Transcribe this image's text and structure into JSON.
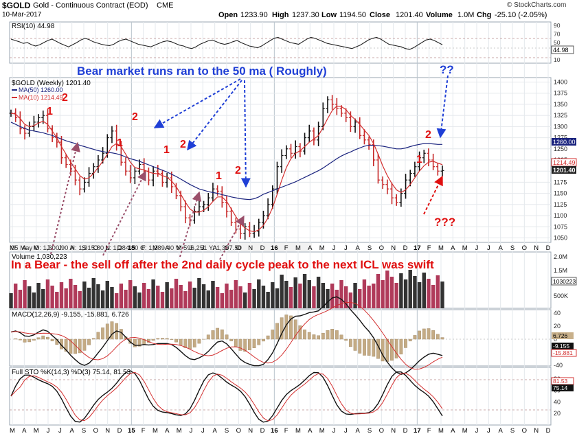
{
  "header": {
    "symbol": "$GOLD",
    "name": "Gold - Continuous Contract (EOD)",
    "exchange": "CME",
    "date": "10-Mar-2017",
    "open_label": "Open",
    "open": "1233.90",
    "high_label": "High",
    "high": "1237.30",
    "low_label": "Low",
    "low": "1194.50",
    "close_label": "Close",
    "close": "1201.40",
    "volume_label": "Volume",
    "volume": "1.0M",
    "chg_label": "Chg",
    "chg": "-25.10 (-2.05%)",
    "watermark": "© StockCharts.com"
  },
  "rsi_panel": {
    "label": "RSI(10) 44.98",
    "ticks": [
      "90",
      "70",
      "50",
      "30",
      "10"
    ],
    "last_value_badge": "44.98",
    "values": [
      58,
      55,
      52,
      48,
      50,
      45,
      42,
      45,
      50,
      55,
      58,
      53,
      48,
      44,
      40,
      45,
      50,
      56,
      60,
      57,
      52,
      49,
      46,
      44,
      43,
      46,
      52,
      56,
      58,
      54,
      50,
      46,
      44,
      42,
      40,
      44,
      48,
      52,
      54,
      52,
      48,
      44,
      42,
      38,
      36,
      40,
      46,
      50,
      54,
      56,
      52,
      48,
      46,
      48,
      52,
      55,
      50,
      46,
      42,
      40,
      38,
      42,
      48,
      54,
      60,
      62,
      58,
      54,
      50,
      48,
      46,
      52,
      58,
      62,
      60,
      56,
      52,
      48,
      46,
      44,
      42,
      40,
      38,
      36,
      40,
      44,
      50,
      56,
      60,
      62,
      58,
      52,
      46,
      44,
      42,
      40,
      36,
      34,
      38,
      44,
      50,
      56,
      58,
      55,
      50,
      45
    ]
  },
  "price_panel": {
    "legend_title": "$GOLD (Weekly) 1201.40",
    "ma50_label": "MA(50) 1260.00",
    "ma10_label": "MA(10) 1214.49",
    "y_ticks": [
      "1400",
      "1375",
      "1350",
      "1325",
      "1300",
      "1275",
      "1250",
      "1225",
      "1200",
      "1175",
      "1150",
      "1125",
      "1100",
      "1075",
      "1050"
    ],
    "price_badge": "1201.40",
    "ma50_badge": "1260.00",
    "ma10_badge": "1214.49",
    "ohlc_strip": "05 May O: 1,300.90   H: 1,315.80   L: 1,284.80   C: 1,289.40   V: 596,251   Y: 1,397.50"
  },
  "x_axis": {
    "labels": [
      "M",
      "A",
      "M",
      "J",
      "J",
      "A",
      "S",
      "O",
      "N",
      "D",
      "15",
      "F",
      "M",
      "A",
      "M",
      "J",
      "J",
      "A",
      "S",
      "O",
      "N",
      "D",
      "16",
      "F",
      "M",
      "A",
      "M",
      "J",
      "J",
      "A",
      "S",
      "O",
      "N",
      "D",
      "17",
      "F",
      "M",
      "A",
      "M",
      "J",
      "J",
      "A",
      "S",
      "O",
      "N",
      "D"
    ]
  },
  "annotations": {
    "title": "Bear market runs ran to the 50 ma ( Roughly)",
    "bottom_note": "In a Bear - the sell off after the 2nd daily cycle peak to the   next ICL was swift",
    "question_top": "??",
    "question_bottom": "???",
    "cycle_marks": [
      "1",
      "2",
      "1",
      "2",
      "1",
      "2",
      "1",
      "2",
      "2",
      "1"
    ]
  },
  "volume_panel": {
    "label": "Volume 1,030,223",
    "ticks": [
      "2.0M",
      "1.5M",
      "500K"
    ],
    "badge": "1030223"
  },
  "macd_panel": {
    "label": "MACD(12,26,9) -9.155, -15.881, 6.726",
    "ticks": [
      "40",
      "20",
      "0",
      "-20",
      "-40"
    ],
    "badges": [
      "6.726",
      "-9.155",
      "-15.881"
    ]
  },
  "sto_panel": {
    "label": "Full STO %K(14,3) %D(3) 75.14, 81.53",
    "ticks": [
      "80",
      "60",
      "40",
      "20"
    ],
    "badges": [
      "81.53",
      "75.14"
    ]
  },
  "chart_data": {
    "type": "line",
    "title": "$GOLD (Weekly)",
    "frequency": "weekly",
    "x_range": [
      "2014-03",
      "2017-12"
    ],
    "ylim": [
      1040,
      1410
    ],
    "close": [
      1330,
      1320,
      1295,
      1285,
      1300,
      1310,
      1320,
      1325,
      1295,
      1275,
      1265,
      1230,
      1215,
      1200,
      1180,
      1160,
      1175,
      1195,
      1210,
      1225,
      1240,
      1275,
      1290,
      1260,
      1220,
      1200,
      1185,
      1200,
      1215,
      1200,
      1180,
      1200,
      1195,
      1175,
      1185,
      1165,
      1145,
      1120,
      1095,
      1090,
      1110,
      1120,
      1125,
      1140,
      1160,
      1155,
      1130,
      1110,
      1085,
      1070,
      1060,
      1075,
      1060,
      1065,
      1085,
      1100,
      1125,
      1160,
      1210,
      1235,
      1250,
      1240,
      1255,
      1245,
      1275,
      1290,
      1270,
      1300,
      1340,
      1360,
      1350,
      1340,
      1330,
      1320,
      1300,
      1310,
      1280,
      1270,
      1260,
      1225,
      1180,
      1170,
      1160,
      1140,
      1130,
      1150,
      1180,
      1195,
      1210,
      1230,
      1240,
      1225,
      1210,
      1200,
      1201.4
    ],
    "series": [
      {
        "name": "MA(50)",
        "values": [
          1310,
          1305,
          1300,
          1296,
          1292,
          1290,
          1288,
          1286,
          1283,
          1280,
          1276,
          1272,
          1268,
          1265,
          1262,
          1258,
          1255,
          1252,
          1249,
          1246,
          1244,
          1242,
          1241,
          1239,
          1236,
          1232,
          1228,
          1225,
          1222,
          1218,
          1214,
          1210,
          1206,
          1202,
          1198,
          1193,
          1188,
          1182,
          1176,
          1170,
          1165,
          1160,
          1157,
          1154,
          1152,
          1150,
          1147,
          1145,
          1142,
          1140,
          1138,
          1137,
          1136,
          1138,
          1142,
          1148,
          1152,
          1156,
          1160,
          1164,
          1168,
          1172,
          1176,
          1181,
          1186,
          1191,
          1196,
          1201,
          1207,
          1214,
          1221,
          1228,
          1234,
          1239,
          1243,
          1248,
          1252,
          1256,
          1258,
          1258,
          1257,
          1256,
          1254,
          1252,
          1250,
          1250,
          1252,
          1255,
          1258,
          1260,
          1262,
          1262,
          1261,
          1260,
          1260
        ]
      },
      {
        "name": "MA(10)",
        "values": [
          1330,
          1328,
          1318,
          1305,
          1300,
          1302,
          1308,
          1312,
          1305,
          1290,
          1275,
          1255,
          1238,
          1220,
          1205,
          1190,
          1182,
          1185,
          1195,
          1208,
          1222,
          1238,
          1255,
          1262,
          1255,
          1238,
          1220,
          1208,
          1205,
          1203,
          1198,
          1195,
          1194,
          1190,
          1186,
          1178,
          1165,
          1148,
          1130,
          1115,
          1108,
          1108,
          1112,
          1120,
          1132,
          1142,
          1142,
          1132,
          1115,
          1098,
          1082,
          1072,
          1066,
          1064,
          1068,
          1078,
          1095,
          1118,
          1148,
          1180,
          1208,
          1228,
          1240,
          1246,
          1255,
          1265,
          1272,
          1280,
          1298,
          1318,
          1336,
          1346,
          1345,
          1338,
          1325,
          1316,
          1305,
          1292,
          1280,
          1262,
          1238,
          1212,
          1190,
          1172,
          1158,
          1152,
          1158,
          1170,
          1185,
          1200,
          1212,
          1220,
          1222,
          1218,
          1214.49
        ]
      }
    ]
  }
}
